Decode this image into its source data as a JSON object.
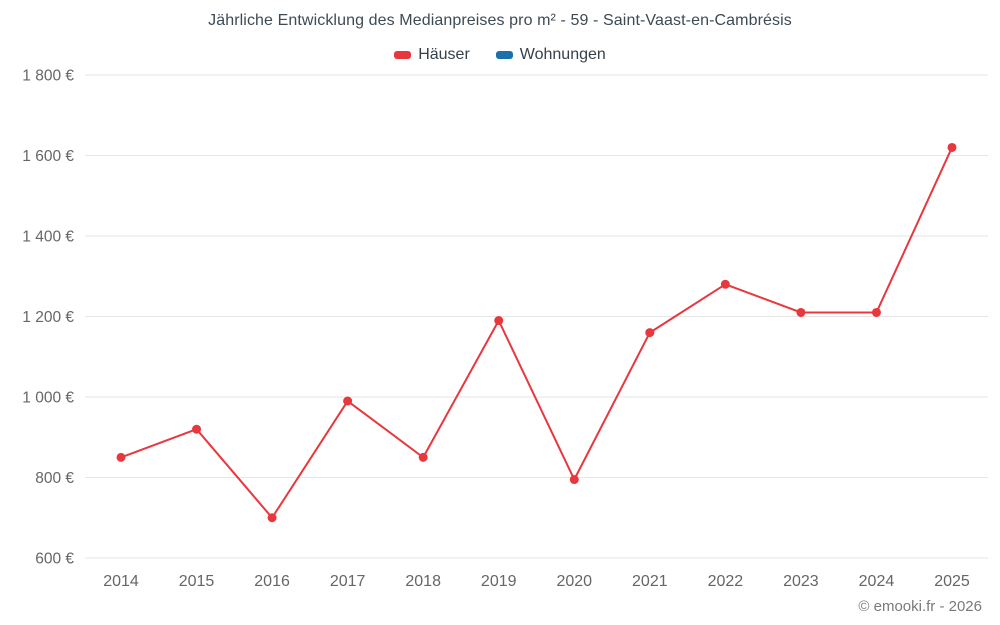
{
  "chart": {
    "title": "Jährliche Entwicklung des Medianpreises pro m² - 59 - Saint-Vaast-en-Cambrésis",
    "footer": "© emooki.fr - 2026"
  },
  "chart_data": {
    "type": "line",
    "title": "Jährliche Entwicklung des Medianpreises pro m² - 59 - Saint-Vaast-en-Cambrésis",
    "x": [
      "2014",
      "2015",
      "2016",
      "2017",
      "2018",
      "2019",
      "2020",
      "2021",
      "2022",
      "2023",
      "2024",
      "2025"
    ],
    "series": [
      {
        "name": "Häuser",
        "color": "#e8373d",
        "values": [
          850,
          920,
          700,
          990,
          850,
          1190,
          795,
          1160,
          1280,
          1210,
          1210,
          1620
        ]
      },
      {
        "name": "Wohnungen",
        "color": "#1a6fad",
        "values": []
      }
    ],
    "xlabel": "",
    "ylabel": "",
    "ylim": [
      600,
      1800
    ],
    "yticks": [
      600,
      800,
      1000,
      1200,
      1400,
      1600,
      1800
    ],
    "ytick_labels": [
      "600 €",
      "800 €",
      "1 000 €",
      "1 200 €",
      "1 400 €",
      "1 600 €",
      "1 800 €"
    ],
    "grid": true,
    "legend_position": "top",
    "colors": {
      "gridline": "#e6e6e6",
      "axis_text": "#666666",
      "title_text": "#3e4a54",
      "footer_text": "#7a7a7a"
    }
  }
}
